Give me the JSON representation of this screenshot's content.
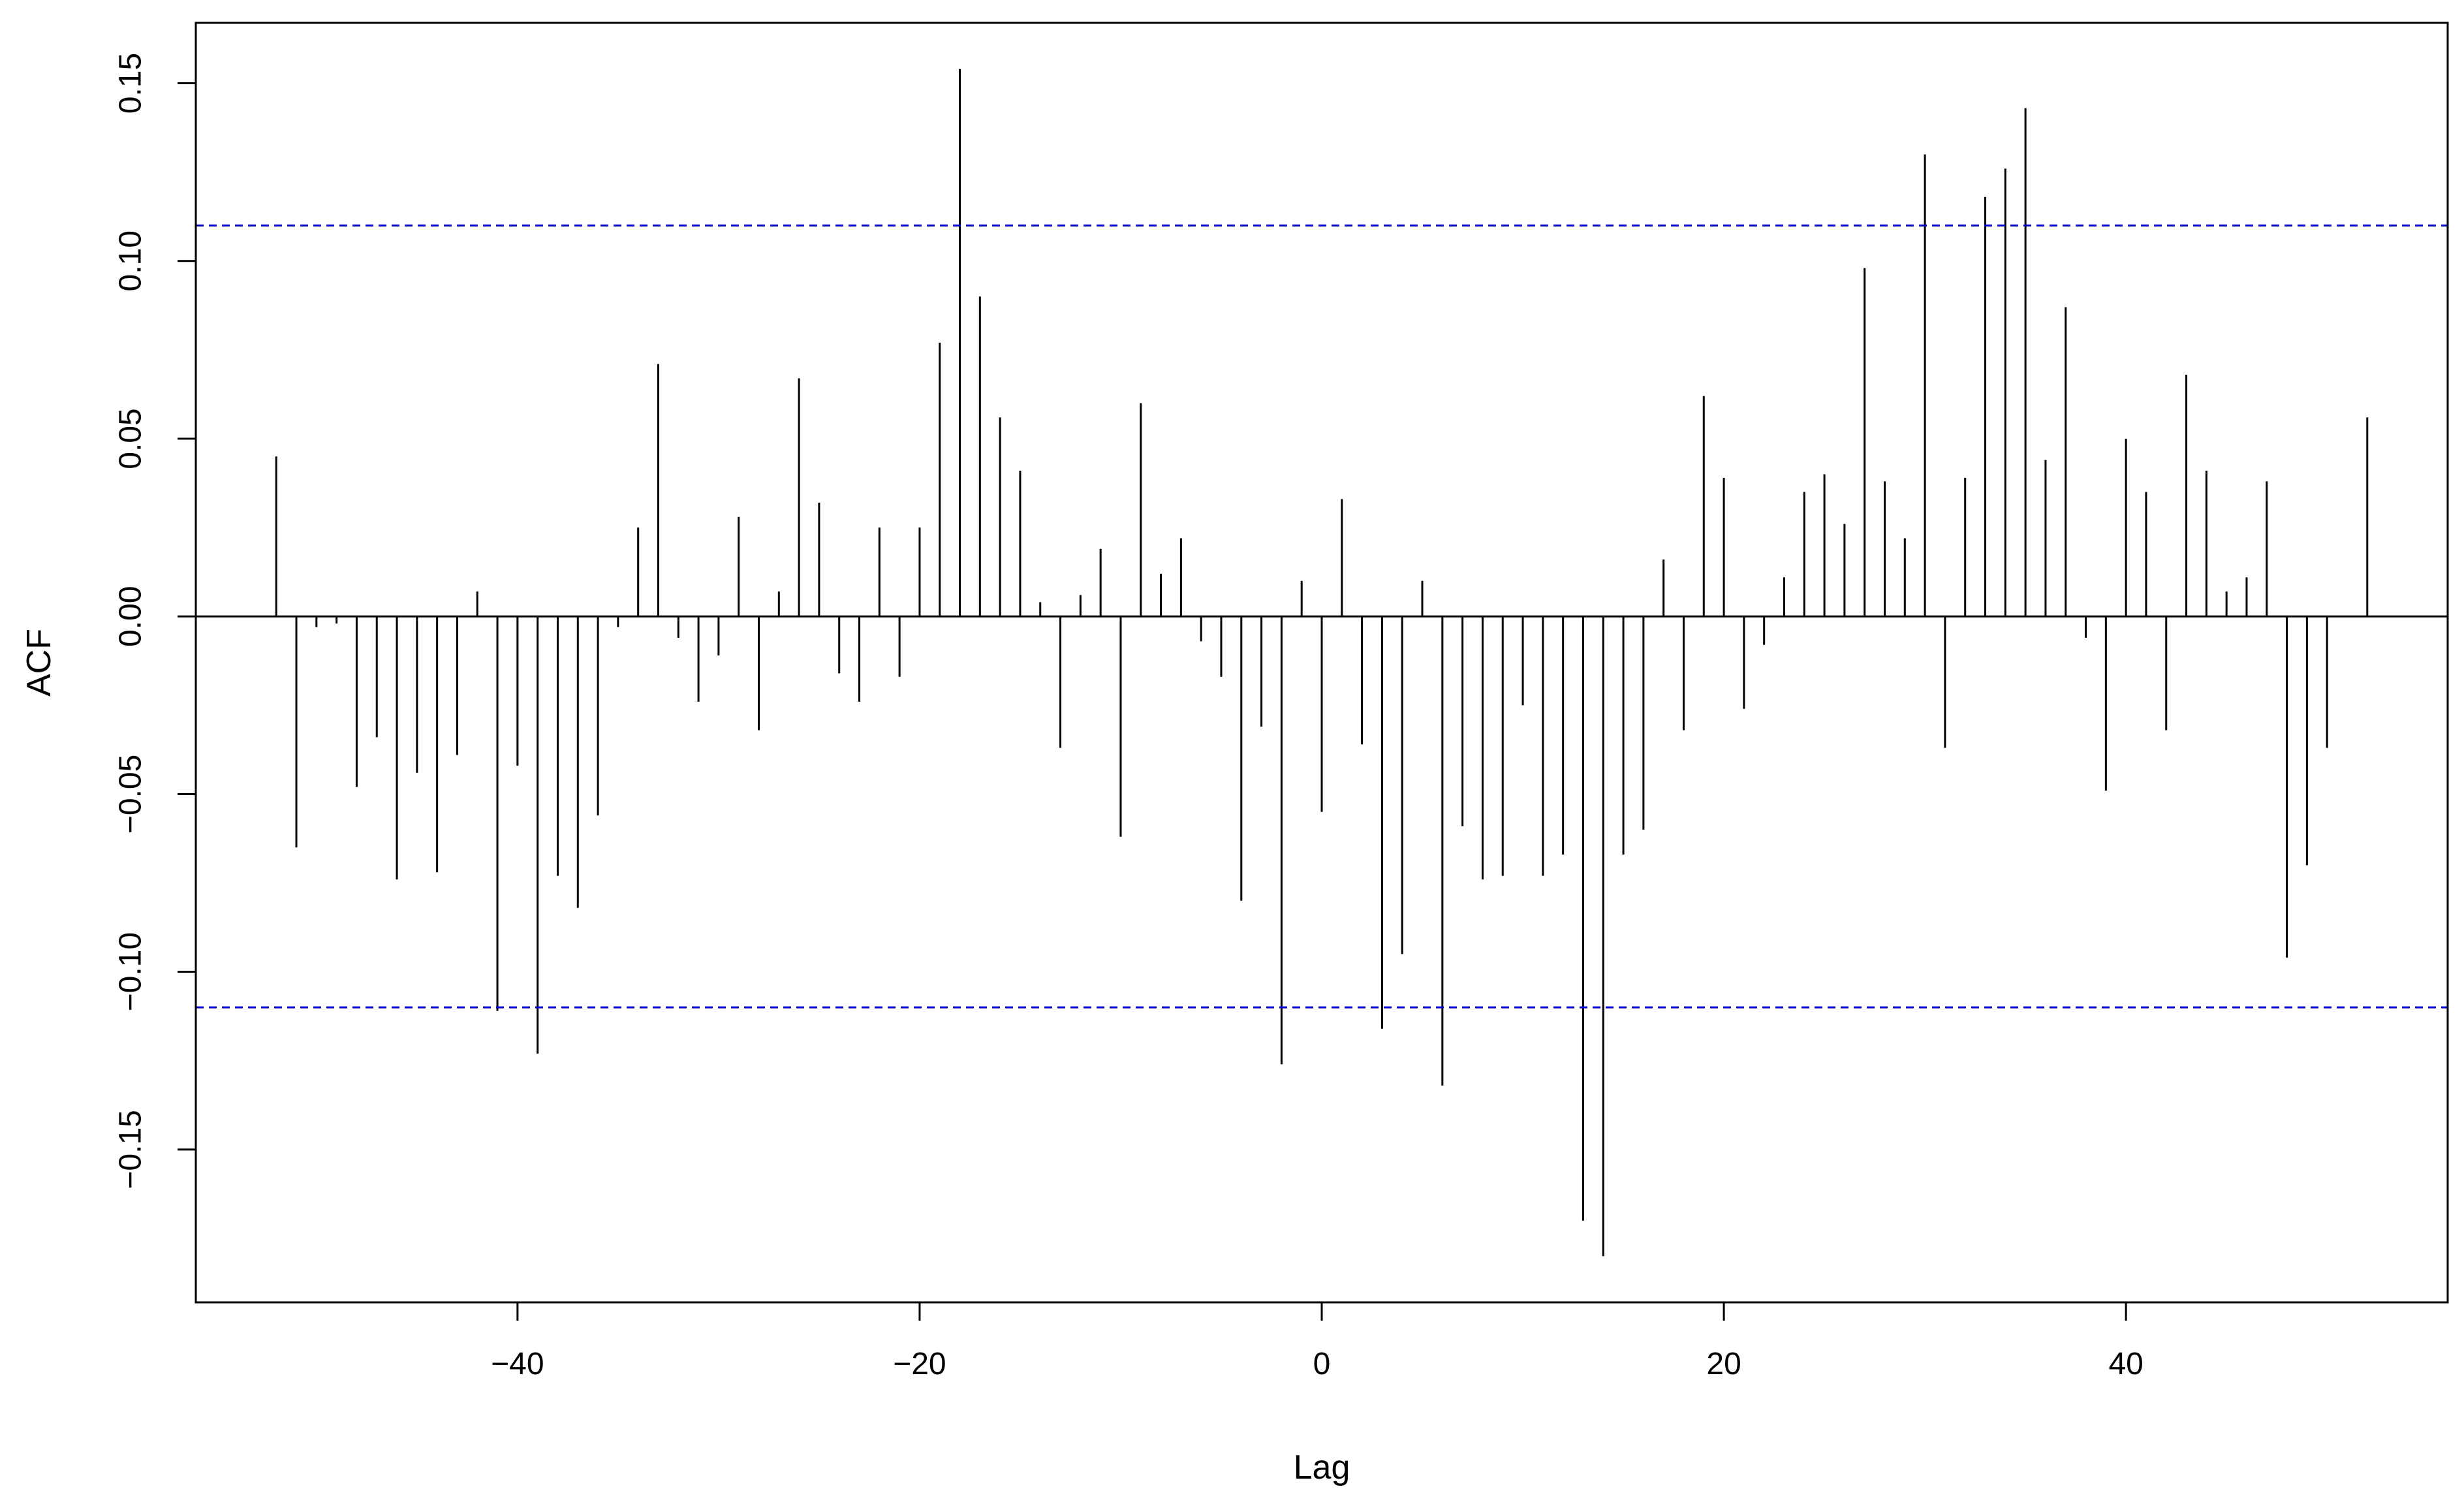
{
  "chart_data": {
    "type": "bar",
    "subtype": "cross-correlation-stem",
    "title": "",
    "xlabel": "Lag",
    "ylabel": "ACF",
    "xlim": [
      -56,
      56
    ],
    "ylim": [
      -0.193,
      0.167
    ],
    "xticks": [
      -40,
      -20,
      0,
      20,
      40
    ],
    "yticks": [
      -0.15,
      -0.1,
      -0.05,
      0.0,
      0.05,
      0.1,
      0.15
    ],
    "xtick_labels": [
      "−40",
      "−20",
      "0",
      "20",
      "40"
    ],
    "ytick_labels": [
      "−0.15",
      "−0.10",
      "−0.05",
      "0.00",
      "0.05",
      "0.10",
      "0.15"
    ],
    "confidence_bounds": [
      -0.11,
      0.11
    ],
    "bound_color": "#0000cc",
    "stem_color": "#000000",
    "grid": false,
    "legend": "none",
    "lags": [
      -52,
      -51,
      -50,
      -49,
      -48,
      -47,
      -46,
      -45,
      -44,
      -43,
      -42,
      -41,
      -40,
      -39,
      -38,
      -37,
      -36,
      -35,
      -34,
      -33,
      -32,
      -31,
      -30,
      -29,
      -28,
      -27,
      -26,
      -25,
      -24,
      -23,
      -22,
      -21,
      -20,
      -19,
      -18,
      -17,
      -16,
      -15,
      -14,
      -13,
      -12,
      -11,
      -10,
      -9,
      -8,
      -7,
      -6,
      -5,
      -4,
      -3,
      -2,
      -1,
      0,
      1,
      2,
      3,
      4,
      5,
      6,
      7,
      8,
      9,
      10,
      11,
      12,
      13,
      14,
      15,
      16,
      17,
      18,
      19,
      20,
      21,
      22,
      23,
      24,
      25,
      26,
      27,
      28,
      29,
      30,
      31,
      32,
      33,
      34,
      35,
      36,
      37,
      38,
      39,
      40,
      41,
      42,
      43,
      44,
      45,
      46,
      47,
      48,
      49,
      50,
      51,
      52
    ],
    "values": [
      0.045,
      -0.065,
      -0.003,
      -0.002,
      -0.048,
      -0.034,
      -0.074,
      -0.044,
      -0.072,
      -0.039,
      0.007,
      -0.111,
      -0.042,
      -0.123,
      -0.073,
      -0.082,
      -0.056,
      -0.003,
      0.025,
      0.071,
      -0.006,
      -0.024,
      -0.011,
      0.028,
      -0.032,
      0.007,
      0.067,
      0.032,
      -0.016,
      -0.024,
      0.025,
      -0.017,
      0.025,
      0.077,
      0.154,
      0.09,
      0.056,
      0.041,
      0.004,
      -0.037,
      0.006,
      0.019,
      -0.062,
      0.06,
      0.012,
      0.022,
      -0.007,
      -0.017,
      -0.08,
      -0.031,
      -0.126,
      0.01,
      -0.055,
      0.033,
      -0.036,
      -0.116,
      -0.095,
      0.01,
      -0.132,
      -0.059,
      -0.074,
      -0.073,
      -0.025,
      -0.073,
      -0.067,
      -0.17,
      -0.18,
      -0.067,
      -0.06,
      0.016,
      -0.032,
      0.062,
      0.039,
      -0.026,
      -0.008,
      0.011,
      0.035,
      0.04,
      0.026,
      0.098,
      0.038,
      0.022,
      0.13,
      -0.037,
      0.039,
      0.118,
      0.126,
      0.143,
      0.044,
      0.087,
      -0.006,
      -0.049,
      0.05,
      0.035,
      -0.032,
      0.068,
      0.041,
      0.007,
      0.011,
      0.038,
      -0.096,
      -0.07,
      -0.037,
      0.0,
      0.056
    ]
  }
}
